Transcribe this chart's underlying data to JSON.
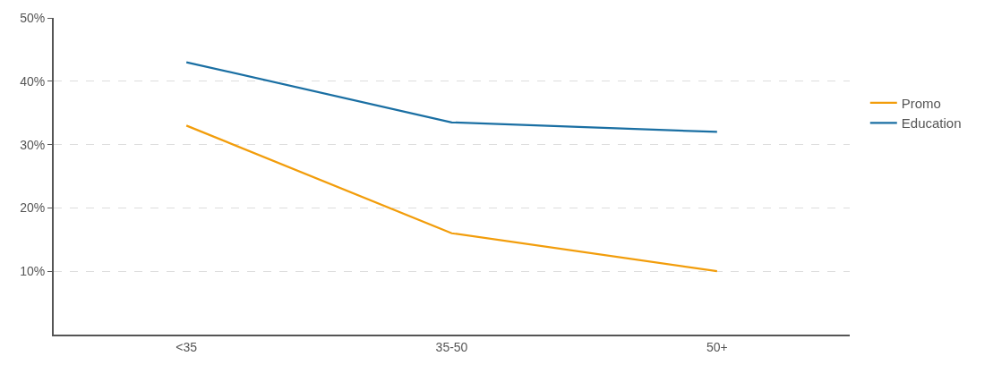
{
  "chart_data": {
    "type": "line",
    "categories": [
      "<35",
      "35-50",
      "50+"
    ],
    "series": [
      {
        "name": "Promo",
        "color": "#f29d0b",
        "values": [
          33,
          16,
          10
        ]
      },
      {
        "name": "Education",
        "color": "#1a6fa3",
        "values": [
          43,
          33.5,
          32
        ]
      }
    ],
    "ylim": [
      0,
      50
    ],
    "yticks": [
      {
        "value": 10,
        "label": "10%"
      },
      {
        "value": 20,
        "label": "20%"
      },
      {
        "value": 30,
        "label": "30%"
      },
      {
        "value": 40,
        "label": "40%"
      },
      {
        "value": 50,
        "label": "50%"
      }
    ],
    "grid": "y",
    "legend": "right",
    "marker": "none",
    "line_style": "solid"
  }
}
